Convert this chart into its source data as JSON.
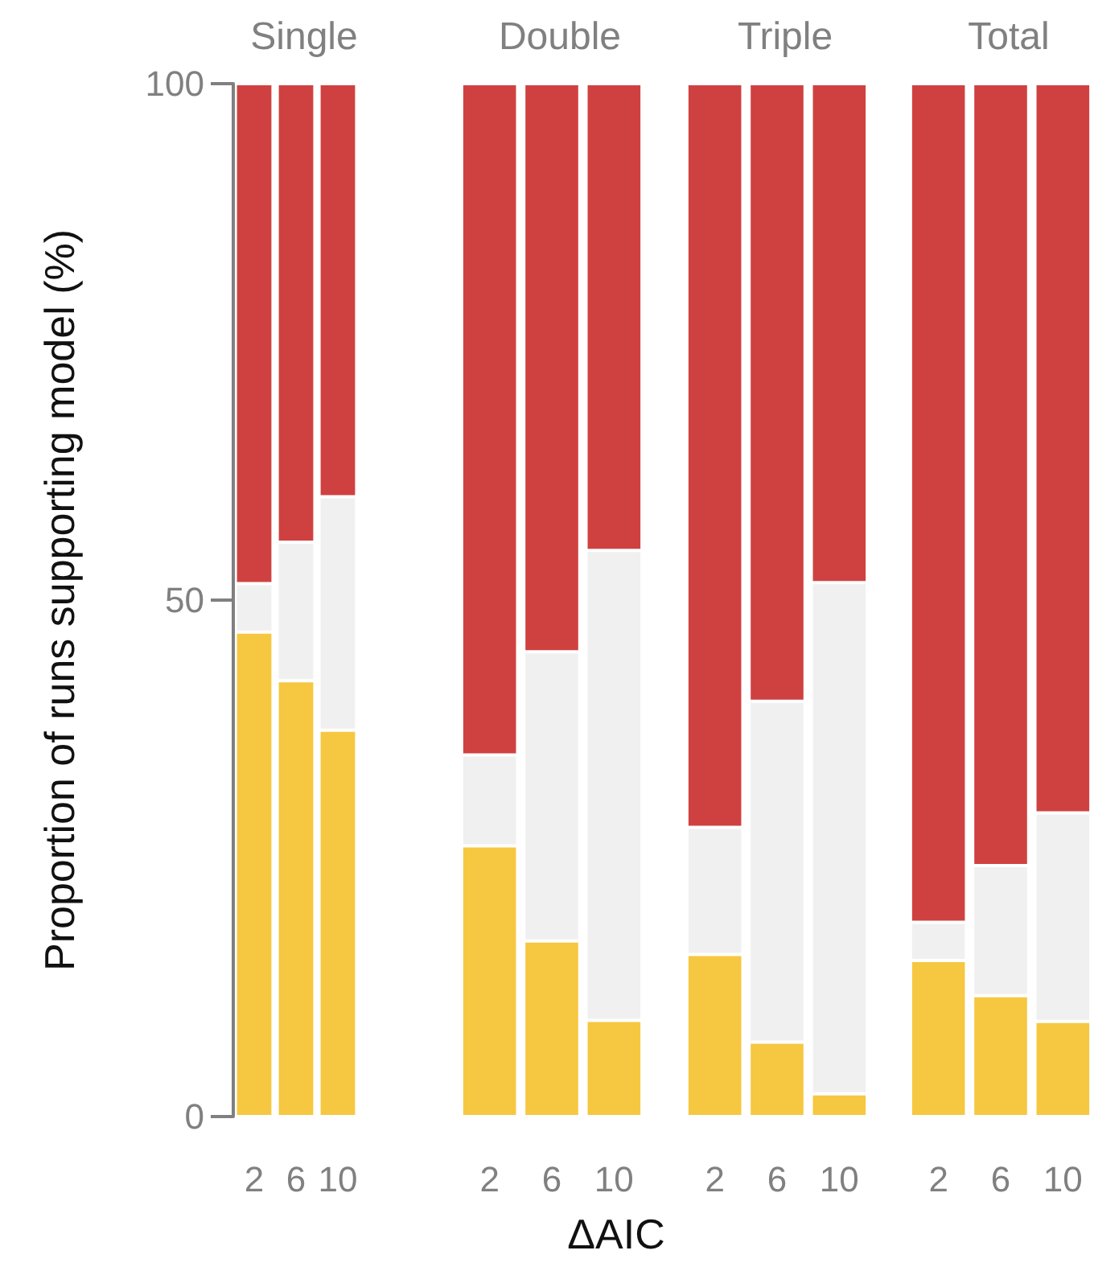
{
  "chart_data": [
    {
      "type": "bar",
      "title": "Single",
      "ylabel": "Proportion of runs supporting model (%)",
      "categories": [
        "2",
        "6",
        "10"
      ],
      "stacked": true,
      "ylim": [
        0,
        100
      ],
      "yticks": [
        0,
        50,
        100
      ],
      "series": [
        {
          "color": "#f6c740",
          "values": [
            46.9,
            42.2,
            37.4
          ]
        },
        {
          "color": "#f0f0f0",
          "values": [
            4.7,
            13.4,
            22.6
          ]
        },
        {
          "color": "#cf4140",
          "values": [
            48.4,
            44.4,
            40.0
          ]
        }
      ]
    },
    {
      "type": "bar",
      "title": "Double",
      "xlabel": "ΔAIC",
      "categories": [
        "2",
        "6",
        "10"
      ],
      "stacked": true,
      "ylim": [
        0,
        100
      ],
      "yticks": [
        0,
        50,
        100
      ],
      "tick_labels": "x",
      "series": [
        {
          "color": "#f6c740",
          "values": [
            26.2,
            17.0,
            9.3
          ]
        },
        {
          "color": "#f0f0f0",
          "values": [
            8.8,
            28.0,
            45.5
          ]
        },
        {
          "color": "#cf4140",
          "values": [
            65.0,
            55.0,
            45.2
          ]
        }
      ]
    },
    {
      "type": "bar",
      "title": "Triple",
      "categories": [
        "2",
        "6",
        "10"
      ],
      "stacked": true,
      "ylim": [
        0,
        100
      ],
      "yticks": [
        0,
        50,
        100
      ],
      "tick_labels": "x",
      "series": [
        {
          "color": "#f6c740",
          "values": [
            15.7,
            7.2,
            2.2
          ]
        },
        {
          "color": "#f0f0f0",
          "values": [
            12.3,
            33.0,
            49.5
          ]
        },
        {
          "color": "#cf4140",
          "values": [
            72.0,
            59.8,
            48.3
          ]
        }
      ]
    },
    {
      "type": "bar",
      "title": "Total",
      "categories": [
        "2",
        "6",
        "10"
      ],
      "stacked": true,
      "ylim": [
        0,
        100
      ],
      "yticks": [
        0,
        50,
        100
      ],
      "tick_labels": "x",
      "series": [
        {
          "color": "#f6c740",
          "values": [
            15.1,
            11.7,
            9.2
          ]
        },
        {
          "color": "#f0f0f0",
          "values": [
            3.7,
            12.6,
            20.2
          ]
        },
        {
          "color": "#cf4140",
          "values": [
            81.2,
            75.7,
            70.6
          ]
        }
      ]
    }
  ]
}
